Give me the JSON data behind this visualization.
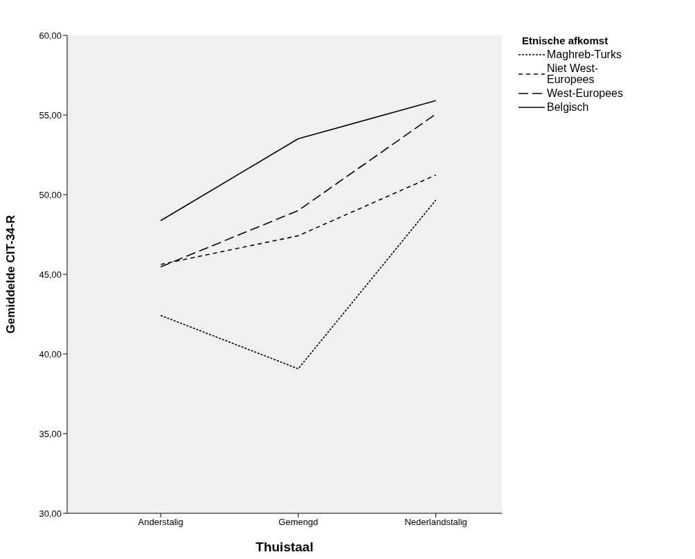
{
  "chart_data": {
    "type": "line",
    "xlabel": "Thuistaal",
    "ylabel": "Gemiddelde CIT-34-R",
    "legend_title": "Etnische afkomst",
    "categories": [
      "Anderstalig",
      "Gemengd",
      "Nederlandstalig"
    ],
    "series": [
      {
        "name": "Maghreb-Turks",
        "color": "#000000",
        "line_style": "dotted",
        "values": [
          42.42,
          39.07,
          49.66
        ]
      },
      {
        "name": "Niet West-Europees",
        "color": "#000000",
        "line_style": "dashed",
        "values": [
          45.62,
          47.42,
          51.23
        ]
      },
      {
        "name": "West-Europees",
        "color": "#000000",
        "line_style": "dashed",
        "values": [
          45.47,
          49.0,
          55.06
        ]
      },
      {
        "name": "Belgisch",
        "color": "#000000",
        "line_style": "solid",
        "values": [
          48.37,
          53.51,
          55.9
        ]
      }
    ],
    "ylim": [
      30,
      60
    ],
    "yticks": [
      {
        "value": 30,
        "label": "30,00"
      },
      {
        "value": 35,
        "label": "35,00"
      },
      {
        "value": 40,
        "label": "40,00"
      },
      {
        "value": 45,
        "label": "45,00"
      },
      {
        "value": 50,
        "label": "50,00"
      },
      {
        "value": 55,
        "label": "55,00"
      },
      {
        "value": 60,
        "label": "60,00"
      }
    ],
    "grid": false,
    "legend": "top right",
    "marker": "none"
  }
}
